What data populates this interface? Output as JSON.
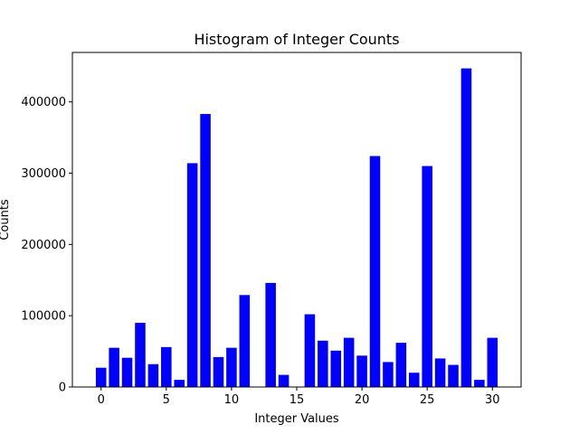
{
  "chart_data": {
    "type": "bar",
    "title": "Histogram of Integer Counts",
    "xlabel": "Integer Values",
    "ylabel": "Counts",
    "bar_color": "#0000ff",
    "x": [
      0,
      1,
      2,
      3,
      4,
      5,
      6,
      7,
      8,
      9,
      10,
      11,
      12,
      13,
      14,
      15,
      16,
      17,
      18,
      19,
      20,
      21,
      22,
      23,
      24,
      25,
      26,
      27,
      28,
      29,
      30
    ],
    "values": [
      27000,
      55000,
      41000,
      90000,
      32000,
      56000,
      10000,
      314000,
      383000,
      42000,
      55000,
      129000,
      0,
      146000,
      17000,
      0,
      102000,
      65000,
      51000,
      69000,
      44000,
      324000,
      35000,
      62000,
      20000,
      310000,
      40000,
      31000,
      447000,
      10000,
      69000
    ],
    "xlim": [
      -2.2,
      32.2
    ],
    "ylim": [
      0,
      469350
    ],
    "xticks": [
      0,
      5,
      10,
      15,
      20,
      25,
      30
    ],
    "xtick_labels": [
      "0",
      "5",
      "10",
      "15",
      "20",
      "25",
      "30"
    ],
    "yticks": [
      0,
      100000,
      200000,
      300000,
      400000
    ],
    "ytick_labels": [
      "0",
      "100000",
      "200000",
      "300000",
      "400000"
    ],
    "grid": false,
    "legend": false
  }
}
